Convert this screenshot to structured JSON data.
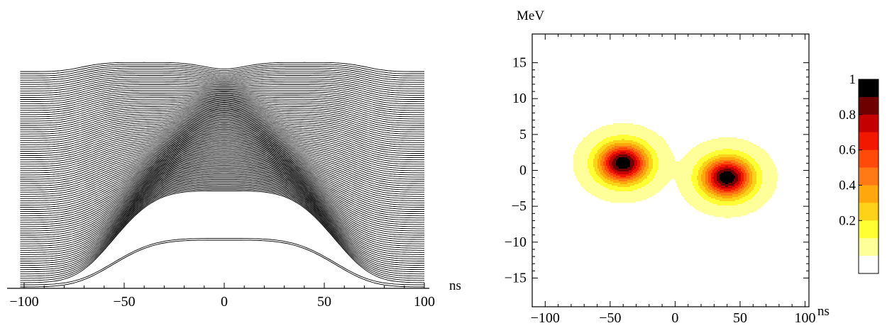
{
  "chart_data": [
    {
      "type": "line",
      "subtype": "waterfall",
      "xlabel": "ns",
      "xlim": [
        -105,
        100
      ],
      "xticks": [
        -100,
        -50,
        0,
        50,
        100
      ],
      "xtick_labels": [
        "−100",
        "−50",
        "0",
        "50",
        "100"
      ],
      "minor_tick_step": 10,
      "n_traces": 101,
      "line_color": "#000000",
      "trace_profile": {
        "x_start": -102,
        "x_end": 100,
        "bottom_trace": {
          "x0": 0,
          "width": 60,
          "height_scale": 1.0
        },
        "top_trace": {
          "x0_left": -40,
          "x0_right": 40,
          "width": 34,
          "height_scale": 0.25
        },
        "note_values_relative": true
      }
    },
    {
      "type": "heatmap",
      "subtype": "contour",
      "xlabel": "ns",
      "ylabel": "MeV",
      "xlim": [
        -110,
        103
      ],
      "ylim": [
        -19,
        19
      ],
      "xticks": [
        -100,
        -50,
        0,
        50,
        100
      ],
      "xtick_labels": [
        "−100",
        "−50",
        "0",
        "50",
        "100"
      ],
      "yticks": [
        -15,
        -10,
        -5,
        0,
        5,
        10,
        15
      ],
      "ytick_labels": [
        "−15",
        "−10",
        "−5",
        "0",
        "5",
        "10",
        "15"
      ],
      "peaks": [
        {
          "t": -40,
          "E": 1,
          "amplitude": 1.0
        },
        {
          "t": 40,
          "E": -1,
          "amplitude": 1.0
        }
      ],
      "peak_width_t": 18,
      "peak_width_E": 2.6,
      "contour_levels": [
        0.01,
        0.1,
        0.2,
        0.3,
        0.4,
        0.5,
        0.6,
        0.7,
        0.8,
        0.9
      ],
      "legend": {
        "labels": [
          "1",
          "0.8",
          "0.6",
          "0.4",
          "0.2"
        ],
        "label_values": [
          1.0,
          0.8,
          0.6,
          0.4,
          0.2
        ],
        "band_colors": [
          "#000000",
          "#6e0000",
          "#c40000",
          "#f21800",
          "#ff4a0a",
          "#ff7a14",
          "#ffa70d",
          "#ffd21a",
          "#ffff33",
          "#ffff99",
          "#ffffff"
        ]
      }
    }
  ]
}
